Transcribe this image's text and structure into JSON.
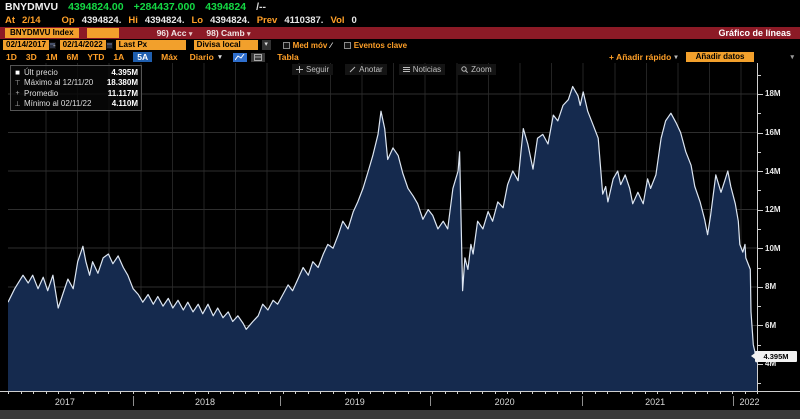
{
  "colors": {
    "green": "#14d944",
    "amber": "#ffa028",
    "orange": "#f2a02c",
    "maroon": "#8c1a26",
    "tab_selected_blue": "#1f5fb0",
    "area_fill": "#152a4e",
    "line": "#dde6f2",
    "grid_h": "#2e2e2e",
    "grid_v": "#232323"
  },
  "icons": {
    "chevron_down": "▾",
    "chevron_down_filled": "▼"
  },
  "quote_bar": {
    "ticker": "BNYDMVU",
    "last": "4394824.00",
    "change": "+284437.000",
    "trade": "4394824",
    "bid_ask": "/--"
  },
  "stats_bar": {
    "at_label": "At",
    "at": "2/14",
    "op_label": "Op",
    "op": "4394824.",
    "hi_label": "Hi",
    "hi": "4394824.",
    "lo_label": "Lo",
    "lo": "4394824.",
    "prev_label": "Prev",
    "prev": "4110387.",
    "vol_label": "Vol",
    "vol": "0"
  },
  "menu_bar": {
    "security": "BNYDMVU Index",
    "actions": "96) Acc",
    "settings": "98) Camb",
    "title": "Gráfico de líneas"
  },
  "controls": {
    "date_from": "02/14/2017",
    "date_separator": "-",
    "date_to": "02/14/2022",
    "price_field": "Last Px",
    "currency": "Divisa local",
    "mov_avg": "Med móv",
    "mov_avg_glyph": "∕",
    "key_events": "Eventos clave"
  },
  "period_bar": {
    "tabs": [
      "1D",
      "3D",
      "1M",
      "6M",
      "YTD",
      "1A",
      "5A",
      "Máx"
    ],
    "selected": "5A",
    "frequency": "Diario",
    "table": "Tabla",
    "add_quick": "+ Añadir rápido",
    "add_data": "Añadir datos"
  },
  "chart_toolbar": {
    "items": [
      {
        "label": "Seguir"
      },
      {
        "label": "Anotar"
      },
      {
        "label": "Noticias"
      },
      {
        "label": "Zoom"
      }
    ]
  },
  "legend": {
    "rows": [
      {
        "marker": "■",
        "label": "Últ precio",
        "value": "4.395M"
      },
      {
        "marker": "⊤",
        "label": "Máximo al 12/11/20",
        "value": "18.380M"
      },
      {
        "marker": "+",
        "label": "Promedio",
        "value": "11.117M"
      },
      {
        "marker": "⊥",
        "label": "Mínimo al 02/11/22",
        "value": "4.110M"
      }
    ]
  },
  "chart_data": {
    "type": "area",
    "title": "BNYDMVU Index — Gráfico de líneas (5A, Diario)",
    "xlabel": "",
    "ylabel": "",
    "unit": "M",
    "x_range": [
      "02/14/2017",
      "02/14/2022"
    ],
    "ylim": [
      2.6,
      19.6
    ],
    "grid": true,
    "legend_position": "top-left",
    "stats": {
      "last": 4.395,
      "max": 18.38,
      "max_date": "12/11/20",
      "avg": 11.117,
      "min": 4.11,
      "min_date": "02/11/22"
    },
    "last_price_marker": {
      "label": "4.395M",
      "v": 4.395
    },
    "y_ticks": [
      {
        "v": 18,
        "label": "18M"
      },
      {
        "v": 16,
        "label": "16M"
      },
      {
        "v": 14,
        "label": "14M"
      },
      {
        "v": 12,
        "label": "12M"
      },
      {
        "v": 10,
        "label": "10M"
      },
      {
        "v": 8,
        "label": "8M"
      },
      {
        "v": 6,
        "label": "6M"
      },
      {
        "v": 4,
        "label": "4M"
      }
    ],
    "x_ticks": [
      {
        "f": 0.076,
        "label": "2017"
      },
      {
        "f": 0.263,
        "label": "2018"
      },
      {
        "f": 0.463,
        "label": "2019"
      },
      {
        "f": 0.663,
        "label": "2020"
      },
      {
        "f": 0.864,
        "label": "2021"
      },
      {
        "f": 0.99,
        "label": "2022"
      }
    ],
    "x_separators": [
      0.167,
      0.363,
      0.563,
      0.766,
      0.968
    ],
    "points": [
      [
        0.0,
        7.2
      ],
      [
        0.009,
        7.9
      ],
      [
        0.02,
        8.6
      ],
      [
        0.027,
        8.2
      ],
      [
        0.033,
        8.6
      ],
      [
        0.04,
        7.9
      ],
      [
        0.047,
        8.5
      ],
      [
        0.053,
        7.8
      ],
      [
        0.06,
        8.6
      ],
      [
        0.067,
        6.9
      ],
      [
        0.073,
        7.6
      ],
      [
        0.08,
        8.4
      ],
      [
        0.087,
        7.9
      ],
      [
        0.093,
        9.3
      ],
      [
        0.1,
        10.1
      ],
      [
        0.104,
        9.3
      ],
      [
        0.109,
        8.6
      ],
      [
        0.113,
        9.3
      ],
      [
        0.12,
        8.7
      ],
      [
        0.127,
        9.5
      ],
      [
        0.134,
        9.7
      ],
      [
        0.14,
        9.2
      ],
      [
        0.147,
        9.6
      ],
      [
        0.154,
        9.0
      ],
      [
        0.16,
        8.6
      ],
      [
        0.167,
        7.9
      ],
      [
        0.174,
        7.6
      ],
      [
        0.18,
        7.2
      ],
      [
        0.187,
        7.6
      ],
      [
        0.194,
        7.1
      ],
      [
        0.2,
        7.5
      ],
      [
        0.207,
        7.0
      ],
      [
        0.214,
        7.4
      ],
      [
        0.22,
        6.9
      ],
      [
        0.227,
        7.3
      ],
      [
        0.234,
        6.8
      ],
      [
        0.24,
        7.2
      ],
      [
        0.247,
        6.7
      ],
      [
        0.254,
        7.1
      ],
      [
        0.26,
        6.6
      ],
      [
        0.267,
        7.1
      ],
      [
        0.274,
        6.5
      ],
      [
        0.28,
        6.9
      ],
      [
        0.287,
        6.4
      ],
      [
        0.294,
        6.7
      ],
      [
        0.3,
        6.2
      ],
      [
        0.307,
        6.5
      ],
      [
        0.314,
        6.1
      ],
      [
        0.318,
        5.8
      ],
      [
        0.327,
        6.2
      ],
      [
        0.334,
        6.5
      ],
      [
        0.34,
        7.1
      ],
      [
        0.347,
        6.8
      ],
      [
        0.354,
        7.3
      ],
      [
        0.36,
        7.1
      ],
      [
        0.367,
        7.6
      ],
      [
        0.374,
        8.1
      ],
      [
        0.38,
        7.8
      ],
      [
        0.387,
        8.4
      ],
      [
        0.394,
        9.0
      ],
      [
        0.401,
        8.6
      ],
      [
        0.407,
        9.3
      ],
      [
        0.414,
        9.0
      ],
      [
        0.421,
        9.7
      ],
      [
        0.427,
        10.2
      ],
      [
        0.434,
        10.0
      ],
      [
        0.441,
        10.7
      ],
      [
        0.447,
        11.4
      ],
      [
        0.454,
        11.0
      ],
      [
        0.461,
        11.9
      ],
      [
        0.467,
        12.4
      ],
      [
        0.474,
        13.1
      ],
      [
        0.481,
        14.0
      ],
      [
        0.487,
        14.8
      ],
      [
        0.494,
        15.9
      ],
      [
        0.498,
        17.1
      ],
      [
        0.503,
        16.2
      ],
      [
        0.507,
        14.6
      ],
      [
        0.514,
        15.2
      ],
      [
        0.521,
        14.8
      ],
      [
        0.527,
        13.9
      ],
      [
        0.534,
        13.1
      ],
      [
        0.541,
        12.7
      ],
      [
        0.547,
        12.3
      ],
      [
        0.554,
        11.5
      ],
      [
        0.561,
        12.0
      ],
      [
        0.567,
        11.7
      ],
      [
        0.574,
        11.0
      ],
      [
        0.581,
        11.4
      ],
      [
        0.587,
        11.0
      ],
      [
        0.594,
        13.1
      ],
      [
        0.601,
        14.0
      ],
      [
        0.603,
        15.0
      ],
      [
        0.607,
        7.8
      ],
      [
        0.61,
        9.5
      ],
      [
        0.614,
        8.9
      ],
      [
        0.618,
        10.2
      ],
      [
        0.621,
        9.7
      ],
      [
        0.627,
        11.4
      ],
      [
        0.634,
        11.0
      ],
      [
        0.641,
        11.9
      ],
      [
        0.647,
        11.4
      ],
      [
        0.654,
        12.4
      ],
      [
        0.661,
        12.1
      ],
      [
        0.667,
        13.3
      ],
      [
        0.674,
        14.0
      ],
      [
        0.681,
        13.5
      ],
      [
        0.688,
        16.2
      ],
      [
        0.694,
        15.4
      ],
      [
        0.701,
        14.1
      ],
      [
        0.707,
        15.7
      ],
      [
        0.714,
        15.9
      ],
      [
        0.721,
        15.4
      ],
      [
        0.728,
        16.9
      ],
      [
        0.734,
        16.6
      ],
      [
        0.741,
        17.4
      ],
      [
        0.748,
        17.7
      ],
      [
        0.754,
        18.38
      ],
      [
        0.761,
        17.9
      ],
      [
        0.764,
        17.4
      ],
      [
        0.768,
        18.1
      ],
      [
        0.774,
        17.1
      ],
      [
        0.781,
        16.4
      ],
      [
        0.788,
        15.7
      ],
      [
        0.794,
        12.8
      ],
      [
        0.798,
        13.2
      ],
      [
        0.801,
        12.4
      ],
      [
        0.808,
        13.6
      ],
      [
        0.814,
        14.0
      ],
      [
        0.818,
        13.3
      ],
      [
        0.824,
        13.8
      ],
      [
        0.83,
        13.1
      ],
      [
        0.834,
        12.3
      ],
      [
        0.841,
        12.9
      ],
      [
        0.848,
        12.3
      ],
      [
        0.854,
        13.6
      ],
      [
        0.858,
        13.1
      ],
      [
        0.865,
        13.8
      ],
      [
        0.872,
        15.7
      ],
      [
        0.878,
        16.6
      ],
      [
        0.885,
        17.0
      ],
      [
        0.892,
        16.5
      ],
      [
        0.898,
        16.0
      ],
      [
        0.905,
        15.0
      ],
      [
        0.912,
        14.3
      ],
      [
        0.917,
        13.2
      ],
      [
        0.924,
        12.4
      ],
      [
        0.93,
        11.5
      ],
      [
        0.934,
        10.7
      ],
      [
        0.938,
        11.7
      ],
      [
        0.945,
        13.8
      ],
      [
        0.952,
        12.9
      ],
      [
        0.957,
        13.5
      ],
      [
        0.961,
        14.0
      ],
      [
        0.965,
        13.2
      ],
      [
        0.971,
        12.3
      ],
      [
        0.975,
        11.4
      ],
      [
        0.977,
        10.2
      ],
      [
        0.981,
        9.8
      ],
      [
        0.984,
        10.2
      ],
      [
        0.985,
        9.5
      ],
      [
        0.991,
        8.9
      ],
      [
        0.992,
        6.7
      ],
      [
        0.995,
        5.0
      ],
      [
        0.997,
        4.66
      ],
      [
        0.999,
        4.11
      ],
      [
        1.0,
        4.395
      ]
    ]
  }
}
